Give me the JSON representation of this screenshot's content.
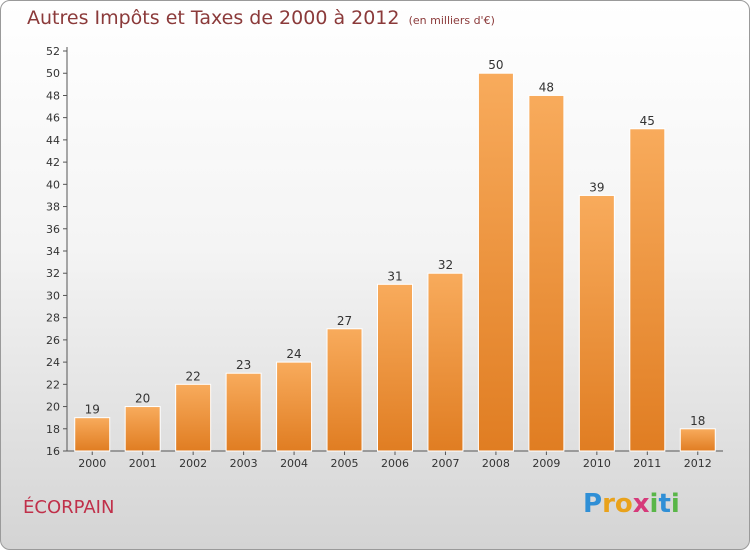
{
  "header": {
    "title": "Autres Impôts et Taxes de 2000 à 2012",
    "subtitle": "(en milliers d'€)"
  },
  "commune": "ÉCORPAIN",
  "logo": {
    "text": "Proxiti",
    "letters": [
      "P",
      "r",
      "o",
      "x",
      "i",
      "t",
      "i"
    ]
  },
  "colors": {
    "bar_top": "#f8ab5c",
    "bar_bottom": "#e07d22",
    "title": "#8b3a3a",
    "commune": "#c0304a"
  },
  "chart_data": {
    "type": "bar",
    "title": "Autres Impôts et Taxes de 2000 à 2012",
    "subtitle": "(en milliers d'€)",
    "xlabel": "",
    "ylabel": "",
    "categories": [
      "2000",
      "2001",
      "2002",
      "2003",
      "2004",
      "2005",
      "2006",
      "2007",
      "2008",
      "2009",
      "2010",
      "2011",
      "2012"
    ],
    "values": [
      19,
      20,
      22,
      23,
      24,
      27,
      31,
      32,
      50,
      48,
      39,
      45,
      18
    ],
    "ylim": [
      16,
      52
    ],
    "yticks": [
      16,
      18,
      20,
      22,
      24,
      26,
      28,
      30,
      32,
      34,
      36,
      38,
      40,
      42,
      44,
      46,
      48,
      50,
      52
    ],
    "grid": false,
    "legend": "none"
  }
}
